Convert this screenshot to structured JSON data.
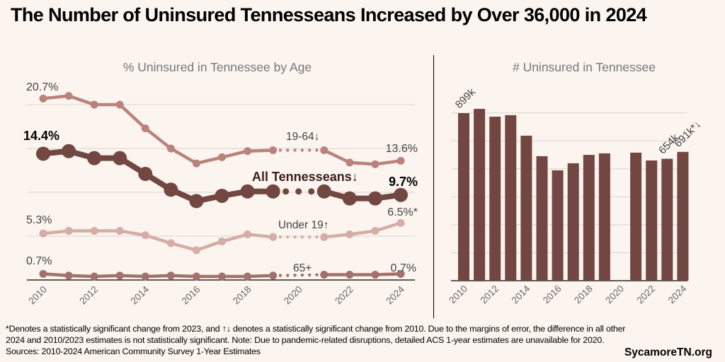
{
  "title": "The Number of Uninsured Tennesseans Increased by Over 36,000 in 2024",
  "footnote": {
    "line1": "*Denotes a statistically significant change from 2023, and ↑↓ denotes a statistically significant change from 2010. Due to the margins of error, the difference in all other",
    "line2": "2024 and 2010/2023 estimates is not statistically significant. Note: Due to pandemic-related disruptions, detailed ACS 1-year estimates are unavailable for 2020.",
    "line3": "Sources: 2010-2024 American Community Survey 1-Year Estimates"
  },
  "brand": "SycamoreTN.org",
  "colors": {
    "background": "#fbf4ef",
    "all": "#724741",
    "age_19_64": "#b9837c",
    "under_19": "#d5aca6",
    "age_65_plus": "#a3716b",
    "bar": "#724741",
    "grid": "#d9d4d0",
    "axis_text": "#666666"
  },
  "chart_data": [
    {
      "type": "line",
      "title": "% Uninsured in Tennessee by Age",
      "xlabel": "",
      "ylabel": "",
      "x": [
        2010,
        2011,
        2012,
        2013,
        2014,
        2015,
        2016,
        2017,
        2018,
        2019,
        2020,
        2021,
        2022,
        2023,
        2024
      ],
      "x_tick_labels": [
        "2010",
        "2012",
        "2014",
        "2016",
        "2018",
        "2020",
        "2022",
        "2024"
      ],
      "ylim": [
        0,
        22
      ],
      "grid_values": [
        5,
        10,
        15,
        20
      ],
      "grid": true,
      "missing_years": [
        2020
      ],
      "gap_style": "dotted",
      "series": [
        {
          "name": "19-64",
          "label": "19-64↓",
          "values": [
            20.7,
            21.0,
            20.0,
            20.0,
            17.3,
            15.0,
            13.3,
            14.0,
            14.7,
            14.8,
            null,
            14.8,
            13.4,
            13.2,
            13.6
          ],
          "start_label": "20.7%",
          "end_label": "13.6%",
          "emphasis": false
        },
        {
          "name": "All Tennesseans",
          "label": "All Tennesseans↓",
          "values": [
            14.4,
            14.7,
            13.9,
            13.9,
            12.1,
            10.3,
            9.0,
            9.6,
            10.1,
            10.1,
            null,
            10.1,
            9.3,
            9.3,
            9.7
          ],
          "start_label": "14.4%",
          "end_label": "9.7%",
          "emphasis": true
        },
        {
          "name": "Under 19",
          "label": "Under 19↑",
          "values": [
            5.3,
            5.6,
            5.6,
            5.6,
            5.1,
            4.2,
            3.4,
            4.4,
            5.2,
            4.9,
            null,
            4.9,
            5.2,
            5.6,
            6.5
          ],
          "start_label": "5.3%",
          "end_label": "6.5%*",
          "emphasis": false
        },
        {
          "name": "65+",
          "label": "65+",
          "values": [
            0.7,
            0.5,
            0.4,
            0.5,
            0.4,
            0.5,
            0.4,
            0.4,
            0.4,
            0.5,
            null,
            0.6,
            0.6,
            0.6,
            0.7
          ],
          "start_label": "0.7%",
          "end_label": "0.7%",
          "emphasis": false
        }
      ]
    },
    {
      "type": "bar",
      "title": "# Uninsured in Tennessee",
      "xlabel": "",
      "ylabel": "",
      "categories": [
        "2010",
        "2011",
        "2012",
        "2013",
        "2014",
        "2015",
        "2016",
        "2017",
        "2018",
        "2019",
        "2020",
        "2021",
        "2022",
        "2023",
        "2024"
      ],
      "x_tick_labels": [
        "2010",
        "2012",
        "2014",
        "2016",
        "2018",
        "2020",
        "2022",
        "2024"
      ],
      "values": [
        899000,
        922000,
        880000,
        888000,
        778000,
        668000,
        592000,
        630000,
        675000,
        683000,
        null,
        687000,
        645000,
        654000,
        691000
      ],
      "ylim": [
        0,
        1000000
      ],
      "grid_values": [
        150000,
        300000,
        450000,
        600000,
        750000,
        900000
      ],
      "grid": true,
      "data_labels": [
        {
          "category": "2010",
          "text": "899k"
        },
        {
          "category": "2023",
          "text": "654k"
        },
        {
          "category": "2024",
          "text": "691k*↓"
        }
      ]
    }
  ]
}
